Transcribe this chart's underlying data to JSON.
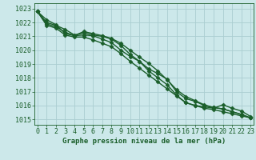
{
  "title": "Graphe pression niveau de la mer (hPa)",
  "bg_color": "#cce8ea",
  "grid_color": "#aacdd0",
  "line_color": "#1a5e2a",
  "x_ticks": [
    0,
    1,
    2,
    3,
    4,
    5,
    6,
    7,
    8,
    9,
    10,
    11,
    12,
    13,
    14,
    15,
    16,
    17,
    18,
    19,
    20,
    21,
    22,
    23
  ],
  "y_ticks": [
    1015,
    1016,
    1017,
    1018,
    1019,
    1020,
    1021,
    1022,
    1023
  ],
  "ylim": [
    1014.6,
    1023.4
  ],
  "xlim": [
    -0.3,
    23.3
  ],
  "series": [
    [
      1022.8,
      1022.2,
      1021.85,
      1021.2,
      1021.05,
      1021.1,
      1021.05,
      1020.8,
      1020.55,
      1020.0,
      1019.55,
      1019.2,
      1018.65,
      1018.3,
      1017.9,
      1017.0,
      1016.5,
      1016.3,
      1016.0,
      1015.85,
      1015.75,
      1015.55,
      1015.35,
      1015.1
    ],
    [
      1022.8,
      1022.0,
      1021.8,
      1021.5,
      1021.1,
      1021.25,
      1021.1,
      1021.0,
      1020.8,
      1020.35,
      1019.7,
      1019.2,
      1018.5,
      1018.0,
      1017.5,
      1016.75,
      1016.2,
      1016.0,
      1015.9,
      1015.8,
      1016.05,
      1015.8,
      1015.6,
      1015.2
    ],
    [
      1022.8,
      1021.9,
      1021.7,
      1021.3,
      1021.05,
      1021.35,
      1021.2,
      1021.05,
      1020.85,
      1020.5,
      1020.0,
      1019.5,
      1019.05,
      1018.5,
      1017.85,
      1017.15,
      1016.65,
      1016.35,
      1016.05,
      1015.85,
      1015.75,
      1015.55,
      1015.35,
      1015.1
    ],
    [
      1022.8,
      1021.8,
      1021.6,
      1021.1,
      1020.95,
      1020.95,
      1020.75,
      1020.5,
      1020.25,
      1019.75,
      1019.2,
      1018.7,
      1018.2,
      1017.7,
      1017.2,
      1016.7,
      1016.2,
      1016.0,
      1015.8,
      1015.7,
      1015.55,
      1015.4,
      1015.25,
      1015.1
    ]
  ],
  "marker": "D",
  "markersize": 2.5,
  "linewidth": 1.0,
  "tick_fontsize": 6.0,
  "label_fontsize": 6.5
}
